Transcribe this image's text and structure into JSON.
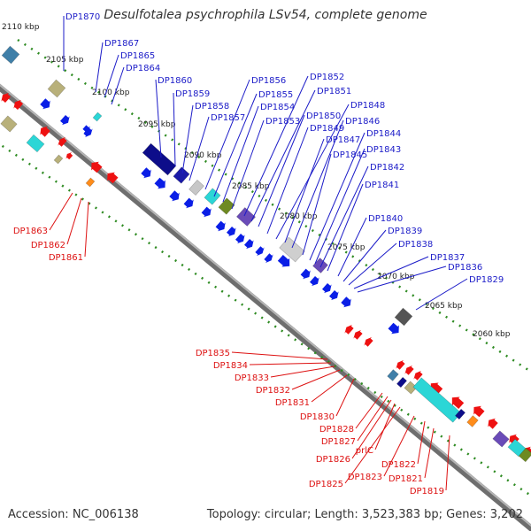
{
  "title": "Desulfotalea psychrophila LSv54, complete genome",
  "footer": {
    "accession": "Accession: NC_006138",
    "topology": "Topology: circular; Length: 3,523,383 bp; Genes: 3,202"
  },
  "colors": {
    "forward_label": "#1c1cc8",
    "reverse_label": "#dd1111",
    "backbone": "#8a8a8a",
    "tick_dots": "#2e8b22",
    "forward_gene": "#0a1ee6",
    "reverse_gene": "#ee1111"
  },
  "kbp_labels": [
    "2110 kbp",
    "2105 kbp",
    "2100 kbp",
    "2095 kbp",
    "2090 kbp",
    "2085 kbp",
    "2080 kbp",
    "2075 kbp",
    "2070 kbp",
    "2065 kbp",
    "2060 kbp"
  ],
  "forward_genes": [
    "DP1870",
    "DP1867",
    "DP1865",
    "DP1864",
    "DP1860",
    "DP1859",
    "DP1858",
    "DP1857",
    "DP1856",
    "DP1855",
    "DP1854",
    "DP1853",
    "DP1852",
    "DP1851",
    "DP1850",
    "DP1849",
    "DP1848",
    "DP1847",
    "DP1846",
    "DP1845",
    "DP1844",
    "DP1843",
    "DP1842",
    "DP1841",
    "DP1840",
    "DP1839",
    "DP1838",
    "DP1837",
    "DP1836",
    "DP1829"
  ],
  "reverse_genes_upper": [
    "DP1863",
    "DP1862",
    "DP1861"
  ],
  "reverse_genes_lower": [
    "DP1835",
    "DP1834",
    "DP1833",
    "DP1832",
    "DP1831",
    "DP1830",
    "DP1828",
    "DP1827",
    "DP1826",
    "prlC",
    "DP1825",
    "DP1823",
    "DP1822",
    "DP1821",
    "DP1819"
  ]
}
